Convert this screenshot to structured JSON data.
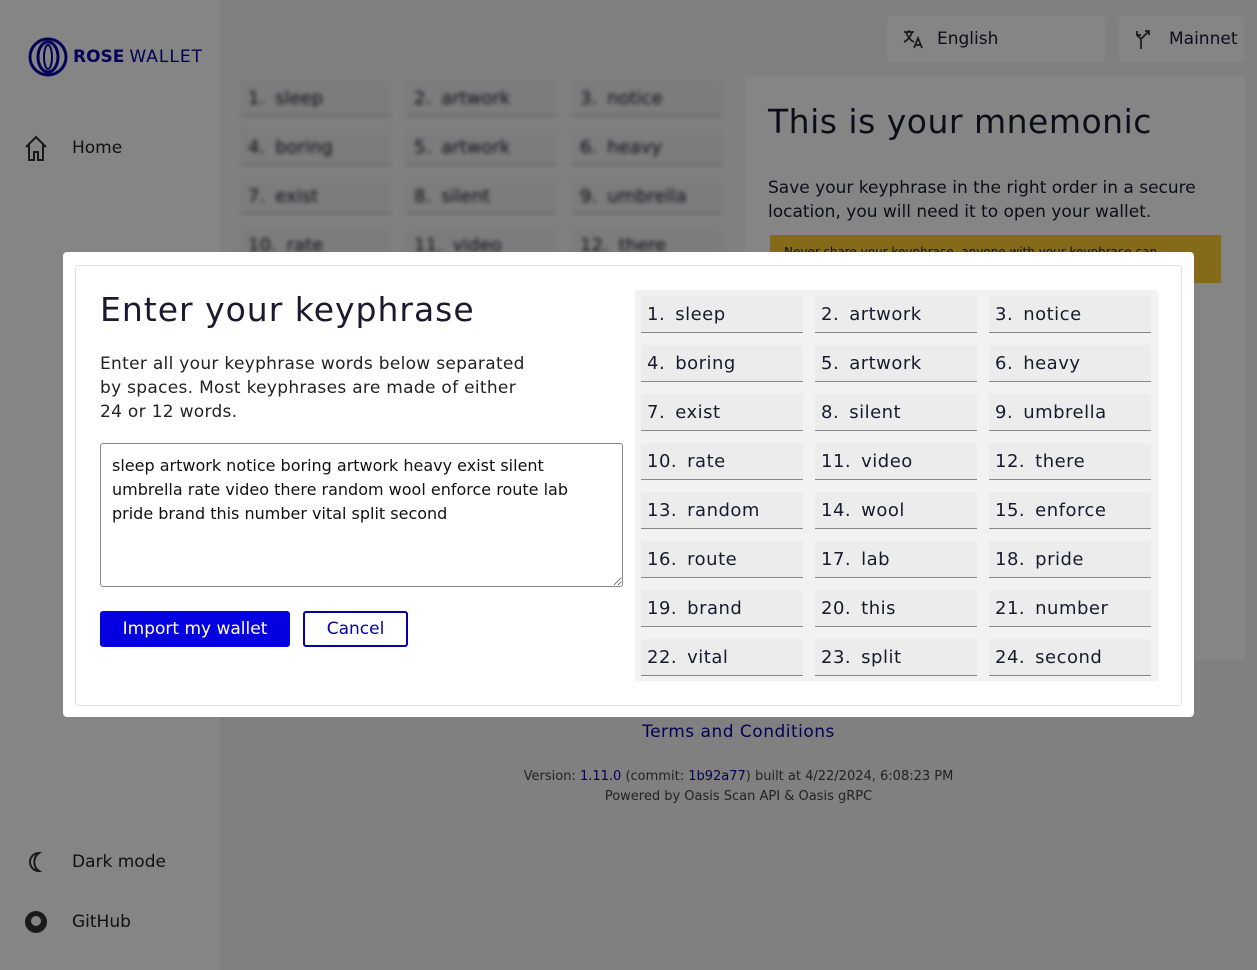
{
  "sidebar": {
    "logo": {
      "bold": "ROSE",
      "light": "WALLET"
    },
    "nav": [
      "Home"
    ],
    "bottom": [
      "Dark mode",
      "GitHub"
    ]
  },
  "header": {
    "language": "English",
    "network": "Mainnet"
  },
  "background": {
    "title": "This is your mnemonic",
    "intro": [
      "Save your keyphrase ",
      "in the right order",
      " in a secure location, you will need it to open your wallet."
    ],
    "warning": "Never share your keyphrase, anyone with your keyphrase can"
  },
  "footer": {
    "terms": "Terms and Conditions",
    "version": [
      "Version: ",
      "1.11.0",
      " (commit: ",
      "1b92a77",
      ") built at 4/22/2024, 6:08:23 PM"
    ],
    "powered": "Powered by Oasis Scan API & Oasis gRPC"
  },
  "modal": {
    "title": "Enter your keyphrase",
    "description": "Enter all your keyphrase words below separated by spaces. Most keyphrases are made of either 24 or 12 words.",
    "input": "sleep artwork notice boring artwork heavy exist silent umbrella rate video there random wool enforce route lab pride brand this number vital split second",
    "import": "Import my wallet",
    "cancel": "Cancel",
    "words": [
      {
        "n": "1.",
        "w": "sleep"
      },
      {
        "n": "2.",
        "w": "artwork"
      },
      {
        "n": "3.",
        "w": "notice"
      },
      {
        "n": "4.",
        "w": "boring"
      },
      {
        "n": "5.",
        "w": "artwork"
      },
      {
        "n": "6.",
        "w": "heavy"
      },
      {
        "n": "7.",
        "w": "exist"
      },
      {
        "n": "8.",
        "w": "silent"
      },
      {
        "n": "9.",
        "w": "umbrella"
      },
      {
        "n": "10.",
        "w": "rate"
      },
      {
        "n": "11.",
        "w": "video"
      },
      {
        "n": "12.",
        "w": "there"
      },
      {
        "n": "13.",
        "w": "random"
      },
      {
        "n": "14.",
        "w": "wool"
      },
      {
        "n": "15.",
        "w": "enforce"
      },
      {
        "n": "16.",
        "w": "route"
      },
      {
        "n": "17.",
        "w": "lab"
      },
      {
        "n": "18.",
        "w": "pride"
      },
      {
        "n": "19.",
        "w": "brand"
      },
      {
        "n": "20.",
        "w": "this"
      },
      {
        "n": "21.",
        "w": "number"
      },
      {
        "n": "22.",
        "w": "vital"
      },
      {
        "n": "23.",
        "w": "split"
      },
      {
        "n": "24.",
        "w": "second"
      }
    ]
  }
}
